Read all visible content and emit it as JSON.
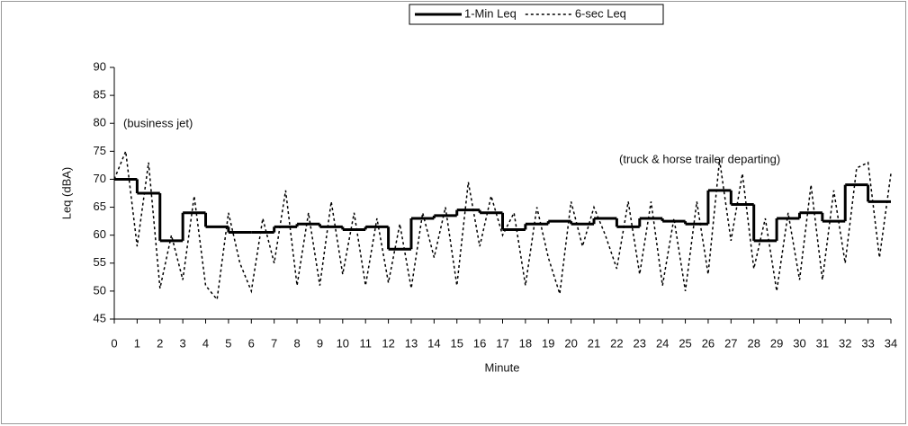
{
  "chart_data": {
    "type": "line",
    "x_label": "Minute",
    "y_label": "Leq (dBA)",
    "annotations": [
      "(business jet)",
      "(truck & horse trailer departing)"
    ],
    "xlim": [
      0,
      34
    ],
    "ylim": [
      45,
      90
    ],
    "xticks": [
      0,
      1,
      2,
      3,
      4,
      5,
      6,
      7,
      8,
      9,
      10,
      11,
      12,
      13,
      14,
      15,
      16,
      17,
      18,
      19,
      20,
      21,
      22,
      23,
      24,
      25,
      26,
      27,
      28,
      29,
      30,
      31,
      32,
      33,
      34
    ],
    "yticks": [
      45,
      50,
      55,
      60,
      65,
      70,
      75,
      80,
      85,
      90
    ],
    "legend": "top",
    "series": [
      {
        "name": "1-Min Leq",
        "color": "#000000",
        "style": "step",
        "x": [
          0,
          1,
          2,
          3,
          4,
          5,
          6,
          7,
          8,
          9,
          10,
          11,
          12,
          13,
          14,
          15,
          16,
          17,
          18,
          19,
          20,
          21,
          22,
          23,
          24,
          25,
          26,
          27,
          28,
          29,
          30,
          31,
          32,
          33
        ],
        "values": [
          70,
          67.5,
          59,
          64,
          61.5,
          60.5,
          60.5,
          61.5,
          62,
          61.5,
          61,
          61.5,
          57.5,
          63,
          63.5,
          64.5,
          64,
          61,
          62,
          62.5,
          62,
          63,
          61.5,
          63,
          62.5,
          62,
          68,
          65.5,
          59,
          63,
          64,
          62.5,
          69,
          66
        ]
      },
      {
        "name": "6-sec Leq",
        "color": "#000000",
        "style": "dashed",
        "x": [
          0,
          0.5,
          1,
          1.5,
          2,
          2.5,
          3,
          3.5,
          4,
          4.5,
          5,
          5.5,
          6,
          6.5,
          7,
          7.5,
          8,
          8.5,
          9,
          9.5,
          10,
          10.5,
          11,
          11.5,
          12,
          12.5,
          13,
          13.5,
          14,
          14.5,
          15,
          15.5,
          16,
          16.5,
          17,
          17.5,
          18,
          18.5,
          19,
          19.5,
          20,
          20.5,
          21,
          21.5,
          22,
          22.5,
          23,
          23.5,
          24,
          24.5,
          25,
          25.5,
          26,
          26.5,
          27,
          27.5,
          28,
          28.5,
          29,
          29.5,
          30,
          30.5,
          31,
          31.5,
          32,
          32.5,
          33,
          33.5,
          34
        ],
        "values": [
          70,
          75,
          58,
          73,
          50.5,
          60,
          52,
          67,
          51,
          48.5,
          64,
          55,
          50,
          63,
          55,
          68,
          51,
          64,
          51,
          66,
          53,
          64,
          51,
          63,
          51.5,
          62,
          50.5,
          64,
          56,
          65,
          51,
          69.5,
          58,
          67,
          60,
          64,
          51,
          65,
          56,
          49.5,
          66,
          58,
          65,
          60,
          54,
          66,
          53,
          66,
          51,
          63,
          50,
          66,
          53,
          73.5,
          59,
          71,
          54,
          63,
          50,
          64,
          52,
          69,
          52,
          68,
          55,
          72,
          73,
          56,
          71
        ]
      }
    ]
  }
}
